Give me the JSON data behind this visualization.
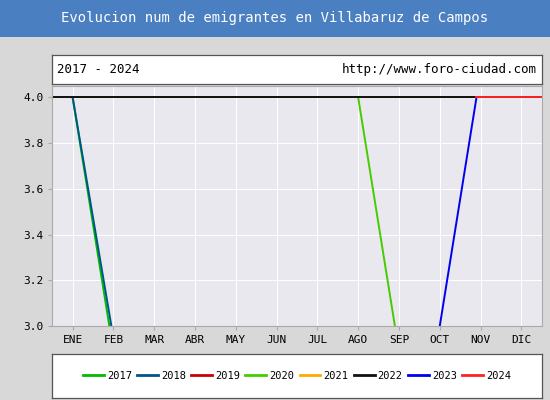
{
  "title": "Evolucion num de emigrantes en Villabaruz de Campos",
  "title_bg": "#4a7fc1",
  "title_color": "white",
  "subtitle_left": "2017 - 2024",
  "subtitle_right": "http://www.foro-ciudad.com",
  "xlabel_months": [
    "ENE",
    "FEB",
    "MAR",
    "ABR",
    "MAY",
    "JUN",
    "JUL",
    "AGO",
    "SEP",
    "OCT",
    "NOV",
    "DIC"
  ],
  "ylim": [
    3.0,
    4.05
  ],
  "yticks": [
    3.0,
    3.2,
    3.4,
    3.6,
    3.8,
    4.0
  ],
  "bg_color": "#d8d8d8",
  "plot_bg": "#e8e8ee",
  "series": [
    {
      "label": "2017",
      "color": "#00bb00",
      "linewidth": 1.4,
      "linestyle": "-",
      "x": [
        1.0,
        1.9
      ],
      "y": [
        4.0,
        3.0
      ]
    },
    {
      "label": "2018",
      "color": "#005588",
      "linewidth": 1.4,
      "linestyle": "-",
      "x": [
        1.0,
        1.95
      ],
      "y": [
        4.0,
        3.0
      ]
    },
    {
      "label": "2019",
      "color": "#cc0000",
      "linewidth": 1.4,
      "linestyle": "-",
      "x": [
        0.5,
        12.5
      ],
      "y": [
        4.0,
        4.0
      ]
    },
    {
      "label": "2020",
      "color": "#44cc00",
      "linewidth": 1.4,
      "linestyle": "-",
      "x": [
        8.0,
        8.9
      ],
      "y": [
        4.0,
        3.0
      ]
    },
    {
      "label": "2021",
      "color": "#ffaa00",
      "linewidth": 1.4,
      "linestyle": "-",
      "x": [
        0.5,
        12.5
      ],
      "y": [
        4.0,
        4.0
      ]
    },
    {
      "label": "2022",
      "color": "#111111",
      "linewidth": 1.4,
      "linestyle": "-",
      "x": [
        0.5,
        12.5
      ],
      "y": [
        4.0,
        4.0
      ]
    },
    {
      "label": "2023",
      "color": "#0000ee",
      "linewidth": 1.4,
      "linestyle": "-",
      "x": [
        10.0,
        10.9
      ],
      "y": [
        3.0,
        4.0
      ]
    },
    {
      "label": "2024",
      "color": "#ff2222",
      "linewidth": 1.4,
      "linestyle": "-",
      "x": [
        10.9,
        12.5
      ],
      "y": [
        4.0,
        4.0
      ]
    }
  ]
}
